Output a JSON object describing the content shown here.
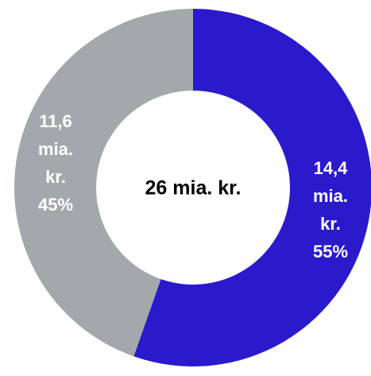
{
  "chart_data": {
    "type": "donut",
    "center_label": "26 mia. kr.",
    "categories": [
      null,
      null
    ],
    "values": [
      14.4,
      11.6
    ],
    "value_labels": [
      [
        "14,4",
        "mia.",
        "kr.",
        "55%"
      ],
      [
        "11,6",
        "mia.",
        "kr.",
        "45%"
      ]
    ],
    "colors": [
      "#2b1acb",
      "#a3a9ab"
    ]
  }
}
